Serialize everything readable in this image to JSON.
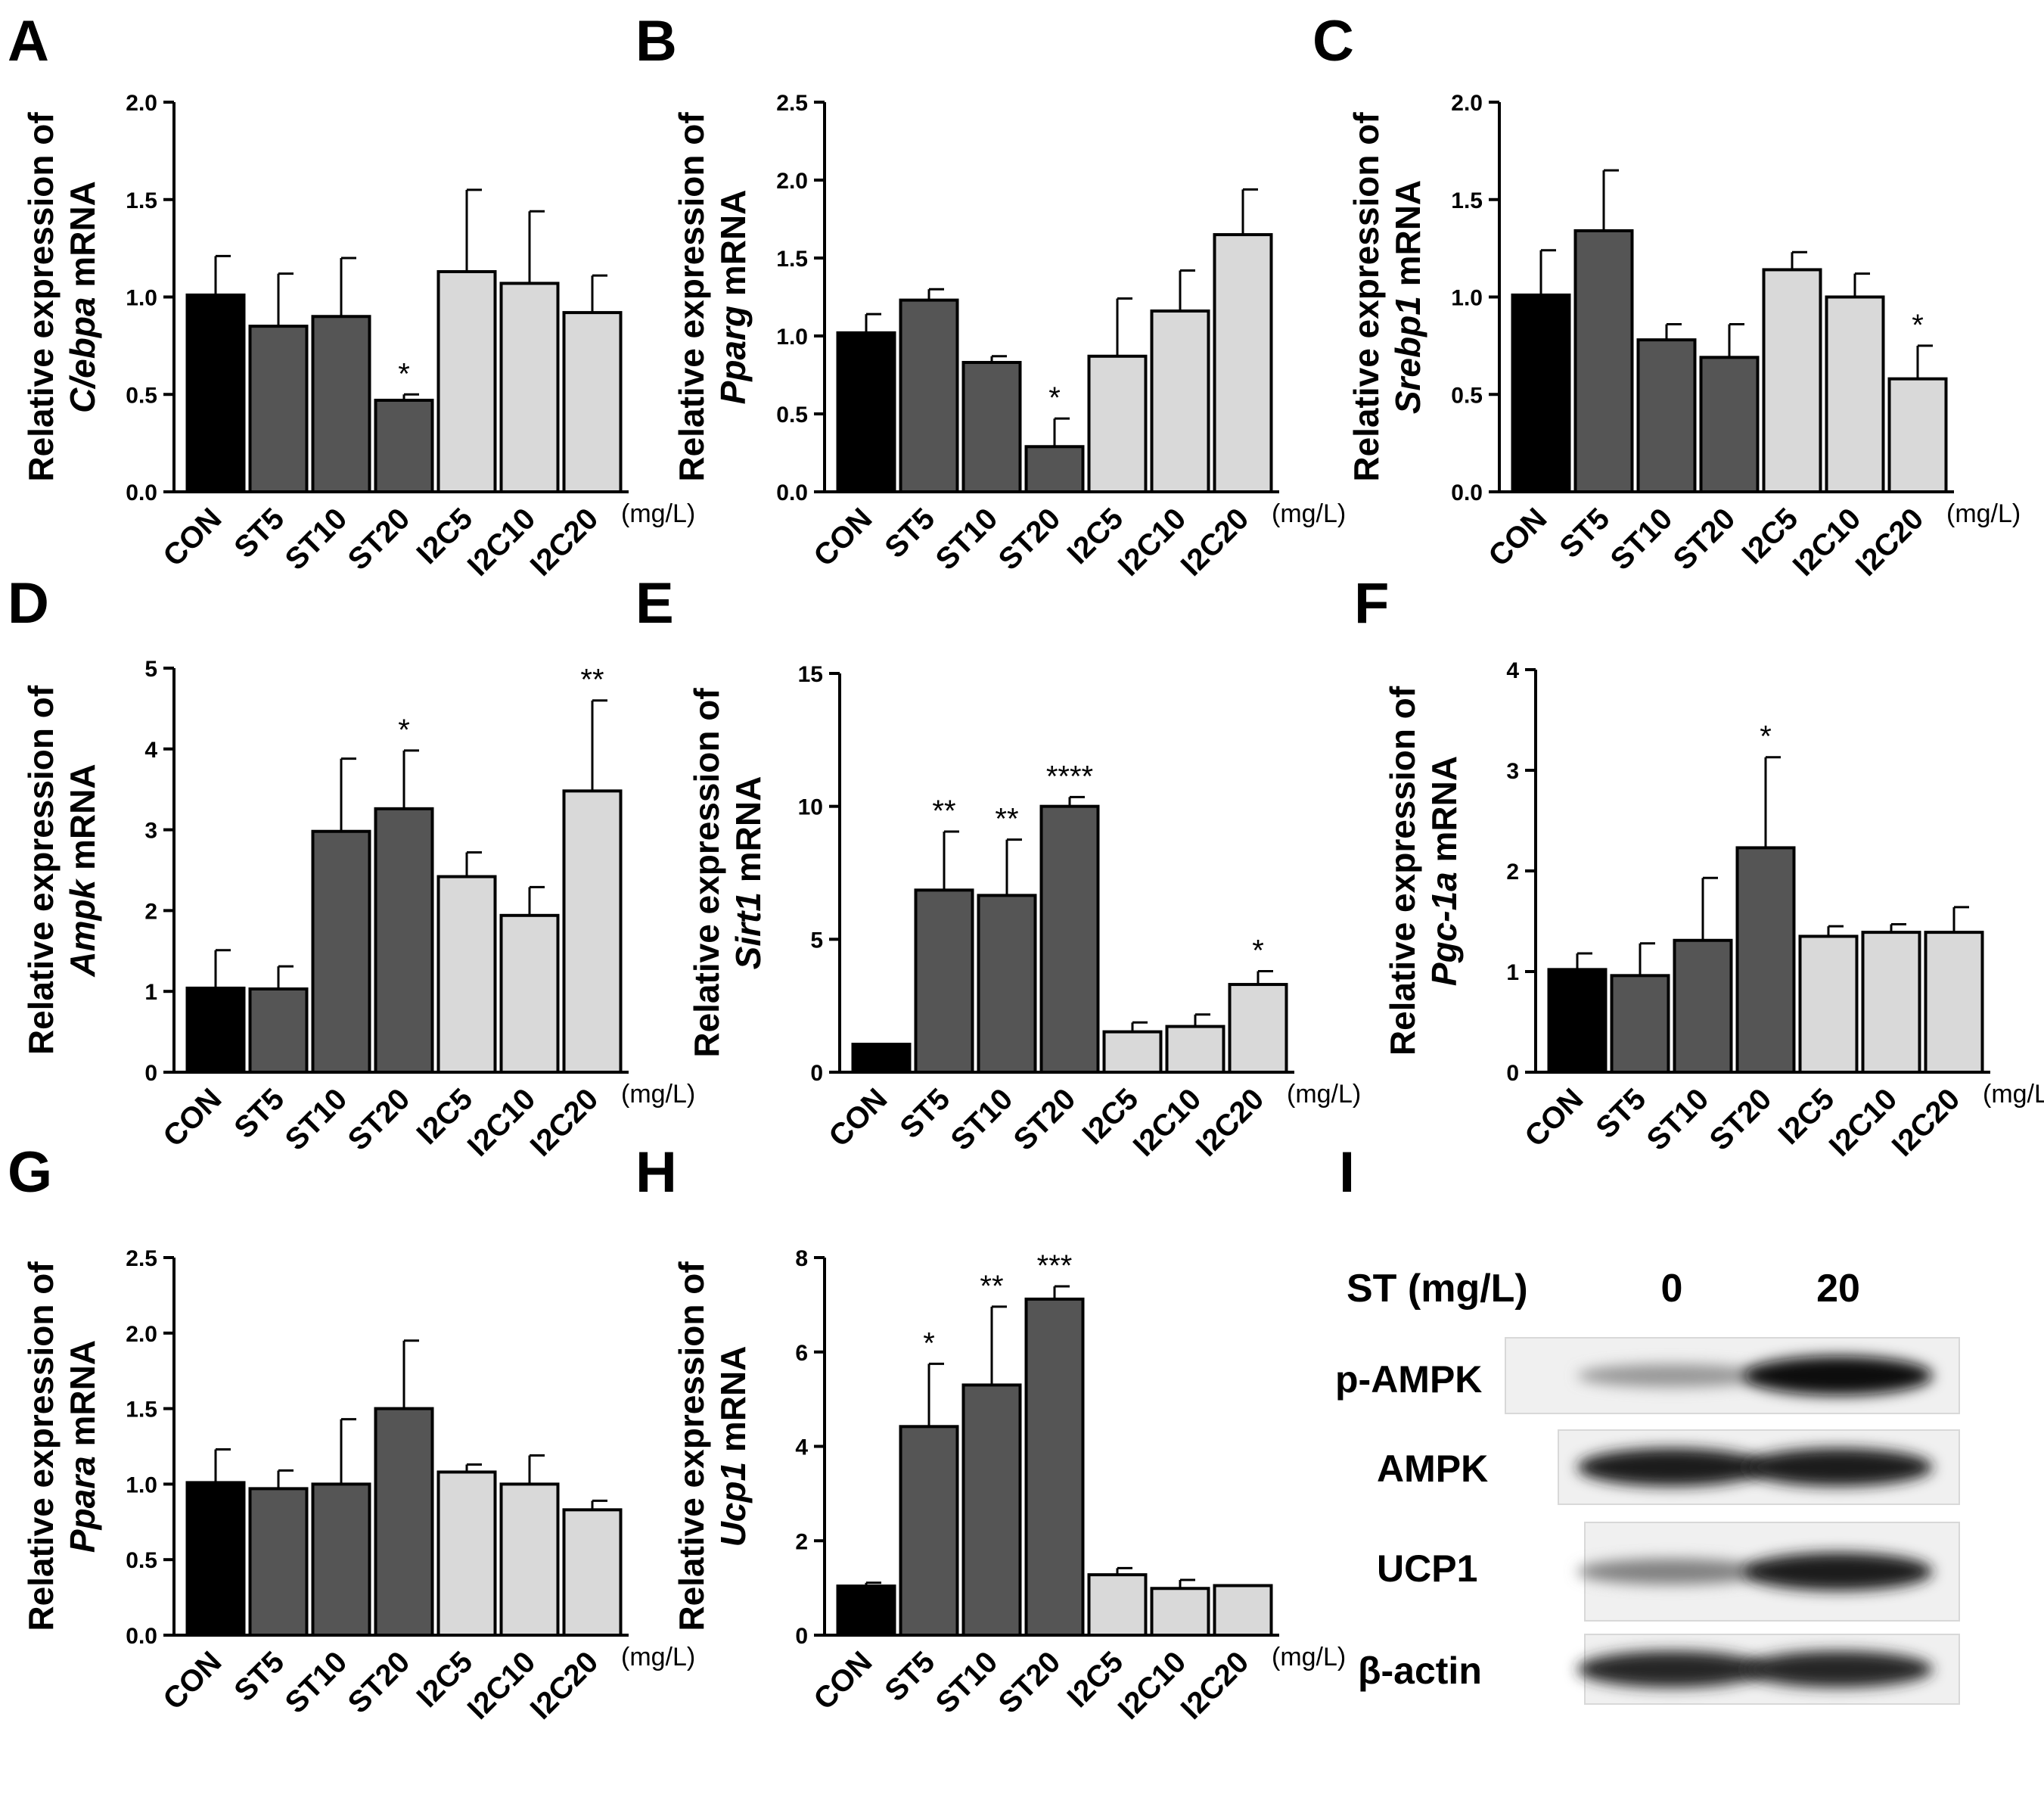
{
  "chart_data": [
    {
      "panel": "A",
      "type": "bar",
      "gene": "C/ebpa",
      "ylabel_prefix": "Relative expression of",
      "ylabel_suffix": "mRNA",
      "categories": [
        "CON",
        "ST5",
        "ST10",
        "ST20",
        "I2C5",
        "I2C10",
        "I2C20"
      ],
      "values": [
        1.01,
        0.85,
        0.9,
        0.47,
        1.13,
        1.07,
        0.92
      ],
      "errors": [
        0.2,
        0.27,
        0.3,
        0.03,
        0.42,
        0.37,
        0.19
      ],
      "significance": [
        "",
        "",
        "",
        "*",
        "",
        "",
        ""
      ],
      "colors": [
        "#000000",
        "#555555",
        "#555555",
        "#555555",
        "#d9d9d9",
        "#d9d9d9",
        "#d9d9d9"
      ],
      "ylim": [
        0,
        2.0
      ],
      "yticks": [
        "0.0",
        "0.5",
        "1.0",
        "1.5",
        "2.0"
      ],
      "unit": "(mg/L)"
    },
    {
      "panel": "B",
      "type": "bar",
      "gene": "Pparg",
      "ylabel_prefix": "Relative expression of",
      "ylabel_suffix": "mRNA",
      "categories": [
        "CON",
        "ST5",
        "ST10",
        "ST20",
        "I2C5",
        "I2C10",
        "I2C20"
      ],
      "values": [
        1.02,
        1.23,
        0.83,
        0.29,
        0.87,
        1.16,
        1.65
      ],
      "errors": [
        0.12,
        0.07,
        0.04,
        0.18,
        0.37,
        0.26,
        0.29
      ],
      "significance": [
        "",
        "",
        "",
        "*",
        "",
        "",
        ""
      ],
      "colors": [
        "#000000",
        "#555555",
        "#555555",
        "#555555",
        "#d9d9d9",
        "#d9d9d9",
        "#d9d9d9"
      ],
      "ylim": [
        0,
        2.5
      ],
      "yticks": [
        "0.0",
        "0.5",
        "1.0",
        "1.5",
        "2.0",
        "2.5"
      ],
      "unit": "(mg/L)"
    },
    {
      "panel": "C",
      "type": "bar",
      "gene": "Srebp1",
      "ylabel_prefix": "Relative expression of",
      "ylabel_suffix": "mRNA",
      "categories": [
        "CON",
        "ST5",
        "ST10",
        "ST20",
        "I2C5",
        "I2C10",
        "I2C20"
      ],
      "values": [
        1.01,
        1.34,
        0.78,
        0.69,
        1.14,
        1.0,
        0.58
      ],
      "errors": [
        0.23,
        0.31,
        0.08,
        0.17,
        0.09,
        0.12,
        0.17
      ],
      "significance": [
        "",
        "",
        "",
        "",
        "",
        "",
        "*"
      ],
      "colors": [
        "#000000",
        "#555555",
        "#555555",
        "#555555",
        "#d9d9d9",
        "#d9d9d9",
        "#d9d9d9"
      ],
      "ylim": [
        0,
        2.0
      ],
      "yticks": [
        "0.0",
        "0.5",
        "1.0",
        "1.5",
        "2.0"
      ],
      "unit": "(mg/L)"
    },
    {
      "panel": "D",
      "type": "bar",
      "gene": "Ampk",
      "ylabel_prefix": "Relative expression of",
      "ylabel_suffix": "mRNA",
      "categories": [
        "CON",
        "ST5",
        "ST10",
        "ST20",
        "I2C5",
        "I2C10",
        "I2C20"
      ],
      "values": [
        1.04,
        1.03,
        2.98,
        3.26,
        2.42,
        1.94,
        3.48
      ],
      "errors": [
        0.47,
        0.28,
        0.9,
        0.72,
        0.3,
        0.35,
        1.12
      ],
      "significance": [
        "",
        "",
        "",
        "*",
        "",
        "",
        "**"
      ],
      "colors": [
        "#000000",
        "#555555",
        "#555555",
        "#555555",
        "#d9d9d9",
        "#d9d9d9",
        "#d9d9d9"
      ],
      "ylim": [
        0,
        5
      ],
      "yticks": [
        "0",
        "1",
        "2",
        "3",
        "4",
        "5"
      ],
      "unit": "(mg/L)"
    },
    {
      "panel": "E",
      "type": "bar",
      "gene": "Sirt1",
      "ylabel_prefix": "Relative expression of",
      "ylabel_suffix": "mRNA",
      "categories": [
        "CON",
        "ST5",
        "ST10",
        "ST20",
        "I2C5",
        "I2C10",
        "I2C20"
      ],
      "values": [
        1.05,
        6.85,
        6.65,
        10.0,
        1.52,
        1.72,
        3.3
      ],
      "errors": [
        0.0,
        2.2,
        2.1,
        0.35,
        0.35,
        0.45,
        0.5
      ],
      "significance": [
        "",
        "**",
        "**",
        "****",
        "",
        "",
        "*"
      ],
      "colors": [
        "#000000",
        "#555555",
        "#555555",
        "#555555",
        "#d9d9d9",
        "#d9d9d9",
        "#d9d9d9"
      ],
      "ylim": [
        0,
        15
      ],
      "yticks": [
        "0",
        "5",
        "10",
        "15"
      ],
      "unit": "(mg/L)"
    },
    {
      "panel": "F",
      "type": "bar",
      "gene": "Pgc-1a",
      "ylabel_prefix": "Relative expression of",
      "ylabel_suffix": "mRNA",
      "categories": [
        "CON",
        "ST5",
        "ST10",
        "ST20",
        "I2C5",
        "I2C10",
        "I2C20"
      ],
      "values": [
        1.02,
        0.96,
        1.31,
        2.23,
        1.35,
        1.39,
        1.39
      ],
      "errors": [
        0.16,
        0.32,
        0.62,
        0.9,
        0.1,
        0.08,
        0.25
      ],
      "significance": [
        "",
        "",
        "",
        "*",
        "",
        "",
        ""
      ],
      "colors": [
        "#000000",
        "#555555",
        "#555555",
        "#555555",
        "#d9d9d9",
        "#d9d9d9",
        "#d9d9d9"
      ],
      "ylim": [
        0,
        4
      ],
      "yticks": [
        "0",
        "1",
        "2",
        "3",
        "4"
      ],
      "unit": "(mg/L)"
    },
    {
      "panel": "G",
      "type": "bar",
      "gene": "Ppara",
      "ylabel_prefix": "Relative expression of",
      "ylabel_suffix": "mRNA",
      "categories": [
        "CON",
        "ST5",
        "ST10",
        "ST20",
        "I2C5",
        "I2C10",
        "I2C20"
      ],
      "values": [
        1.01,
        0.97,
        1.0,
        1.5,
        1.08,
        1.0,
        0.83
      ],
      "errors": [
        0.22,
        0.12,
        0.43,
        0.45,
        0.05,
        0.19,
        0.06
      ],
      "significance": [
        "",
        "",
        "",
        "",
        "",
        "",
        ""
      ],
      "colors": [
        "#000000",
        "#555555",
        "#555555",
        "#555555",
        "#d9d9d9",
        "#d9d9d9",
        "#d9d9d9"
      ],
      "ylim": [
        0,
        2.5
      ],
      "yticks": [
        "0.0",
        "0.5",
        "1.0",
        "1.5",
        "2.0",
        "2.5"
      ],
      "unit": "(mg/L)"
    },
    {
      "panel": "H",
      "type": "bar",
      "gene": "Ucp1",
      "ylabel_prefix": "Relative expression of",
      "ylabel_suffix": "mRNA",
      "categories": [
        "CON",
        "ST5",
        "ST10",
        "ST20",
        "I2C5",
        "I2C10",
        "I2C20"
      ],
      "values": [
        1.04,
        4.42,
        5.3,
        7.12,
        1.28,
        0.99,
        1.05
      ],
      "errors": [
        0.07,
        1.33,
        1.66,
        0.27,
        0.14,
        0.18,
        0.0
      ],
      "significance": [
        "",
        "*",
        "**",
        "***",
        "",
        "",
        ""
      ],
      "colors": [
        "#000000",
        "#555555",
        "#555555",
        "#555555",
        "#d9d9d9",
        "#d9d9d9",
        "#d9d9d9"
      ],
      "ylim": [
        0,
        8
      ],
      "yticks": [
        "0",
        "2",
        "4",
        "6",
        "8"
      ],
      "unit": "(mg/L)"
    }
  ],
  "western_blot": {
    "panel": "I",
    "header_label": "ST (mg/L)",
    "lanes": [
      "0",
      "20"
    ],
    "rows": [
      {
        "label": "p-AMPK",
        "intensity": [
          0.35,
          0.95
        ]
      },
      {
        "label": "AMPK",
        "intensity": [
          0.9,
          0.9
        ]
      },
      {
        "label": "UCP1",
        "intensity": [
          0.45,
          0.9
        ]
      },
      {
        "label": "β-actin",
        "intensity": [
          0.85,
          0.85
        ]
      }
    ]
  }
}
